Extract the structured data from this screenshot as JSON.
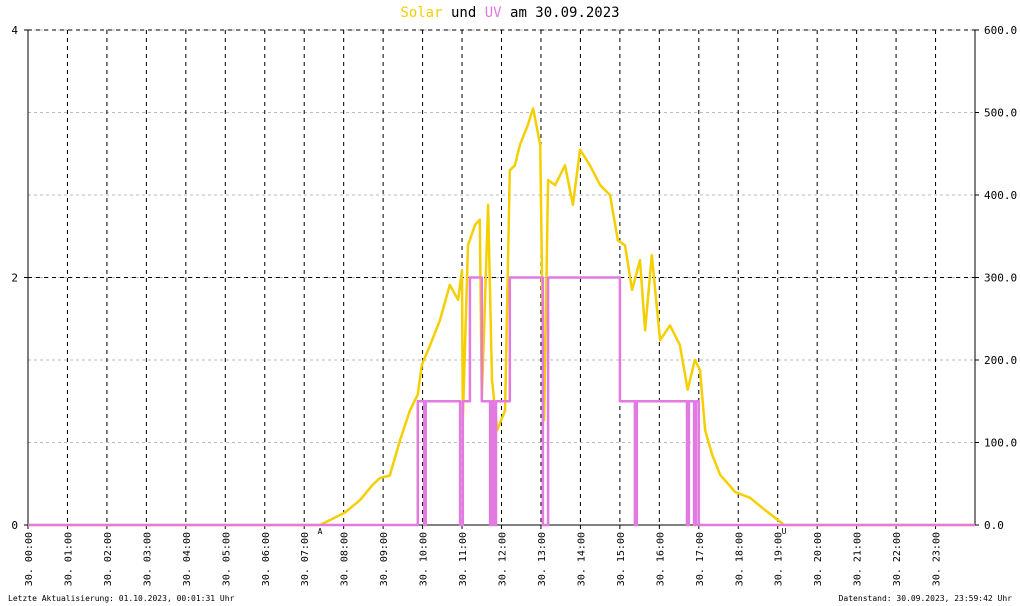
{
  "chart_data": {
    "type": "line",
    "title_connector": "und",
    "title_suffix": "am 30.09.2023",
    "series": [
      {
        "name": "Solar",
        "color": "#f5cf00",
        "axis": "y2",
        "x": [
          0,
          7.4,
          8.03,
          8.41,
          8.72,
          8.92,
          9.17,
          9.43,
          9.68,
          9.88,
          9.98,
          10.19,
          10.44,
          10.69,
          10.9,
          11.0,
          11.02,
          11.15,
          11.33,
          11.45,
          11.5,
          11.66,
          11.76,
          11.89,
          12.09,
          12.21,
          12.34,
          12.47,
          12.67,
          12.8,
          12.98,
          13.08,
          13.18,
          13.36,
          13.61,
          13.81,
          13.99,
          14.24,
          14.5,
          14.75,
          14.95,
          15.13,
          15.31,
          15.51,
          15.64,
          15.81,
          16.02,
          16.27,
          16.52,
          16.72,
          16.9,
          17.03,
          17.16,
          17.34,
          17.54,
          17.92,
          18.3,
          18.68,
          19.06,
          19.16,
          24
        ],
        "values": [
          0,
          0,
          15,
          30,
          48,
          57,
          60,
          103,
          139,
          158,
          194,
          218,
          248,
          291,
          273,
          309,
          127,
          339,
          364,
          370,
          152,
          388,
          176,
          115,
          139,
          430,
          436,
          461,
          485,
          505,
          461,
          127,
          418,
          412,
          436,
          388,
          455,
          436,
          412,
          400,
          345,
          339,
          285,
          321,
          236,
          327,
          224,
          242,
          218,
          164,
          200,
          188,
          115,
          85,
          61,
          40,
          33,
          18,
          4,
          0,
          0
        ]
      },
      {
        "name": "UV",
        "color": "#e27ae2",
        "x": [
          0,
          9.88,
          9.88,
          10.04,
          10.04,
          10.08,
          10.08,
          10.95,
          10.95,
          11.02,
          11.02,
          11.2,
          11.2,
          11.5,
          11.5,
          11.71,
          11.71,
          11.76,
          11.76,
          11.81,
          11.81,
          11.86,
          11.86,
          12.21,
          12.21,
          13.05,
          13.05,
          13.18,
          13.18,
          15.0,
          15.0,
          15.38,
          15.38,
          15.43,
          15.43,
          16.7,
          16.7,
          16.75,
          16.75,
          16.88,
          16.88,
          16.93,
          16.93,
          17.0,
          17.0,
          24
        ],
        "values": [
          0,
          0,
          1,
          1,
          0,
          0,
          1,
          1,
          0,
          0,
          1,
          1,
          2,
          2,
          1,
          1,
          0,
          0,
          1,
          1,
          0,
          0,
          1,
          1,
          2,
          2,
          0,
          0,
          2,
          2,
          1,
          1,
          0,
          0,
          1,
          1,
          0,
          0,
          1,
          1,
          0,
          0,
          1,
          1,
          0,
          0
        ]
      }
    ],
    "xlim": [
      0,
      24
    ],
    "xticks": [
      {
        "value": 0,
        "label": "30. 00:00"
      },
      {
        "value": 1,
        "label": "30. 01:00"
      },
      {
        "value": 2,
        "label": "30. 02:00"
      },
      {
        "value": 3,
        "label": "30. 03:00"
      },
      {
        "value": 4,
        "label": "30. 04:00"
      },
      {
        "value": 5,
        "label": "30. 05:00"
      },
      {
        "value": 6,
        "label": "30. 06:00"
      },
      {
        "value": 7,
        "label": "30. 07:00"
      },
      {
        "value": 8,
        "label": "30. 08:00"
      },
      {
        "value": 9,
        "label": "30. 09:00"
      },
      {
        "value": 10,
        "label": "30. 10:00"
      },
      {
        "value": 11,
        "label": "30. 11:00"
      },
      {
        "value": 12,
        "label": "30. 12:00"
      },
      {
        "value": 13,
        "label": "30. 13:00"
      },
      {
        "value": 14,
        "label": "30. 14:00"
      },
      {
        "value": 15,
        "label": "30. 15:00"
      },
      {
        "value": 16,
        "label": "30. 16:00"
      },
      {
        "value": 17,
        "label": "30. 17:00"
      },
      {
        "value": 18,
        "label": "30. 18:00"
      },
      {
        "value": 19,
        "label": "30. 19:00"
      },
      {
        "value": 20,
        "label": "30. 20:00"
      },
      {
        "value": 21,
        "label": "30. 21:00"
      },
      {
        "value": 22,
        "label": "30. 22:00"
      },
      {
        "value": 23,
        "label": "30. 23:00"
      }
    ],
    "ylim": [
      0,
      4
    ],
    "yticks": [
      0,
      2,
      4
    ],
    "y2lim": [
      0,
      600
    ],
    "y2ticks": [
      {
        "value": 0,
        "label": "0.0"
      },
      {
        "value": 100,
        "label": "100.0"
      },
      {
        "value": 200,
        "label": "200.0"
      },
      {
        "value": 300,
        "label": "300.0"
      },
      {
        "value": 400,
        "label": "400.0"
      },
      {
        "value": 500,
        "label": "500.0"
      },
      {
        "value": 600,
        "label": "600.0"
      }
    ],
    "grid": true,
    "annotations": [
      {
        "text": "A",
        "x": 7.4,
        "color": "#d00000"
      },
      {
        "text": "U",
        "x": 19.16,
        "color": "#d00000"
      }
    ]
  },
  "footer": {
    "left": "Letzte Aktualisierung: 01.10.2023, 00:01:31 Uhr",
    "right": "Datenstand: 30.09.2023, 23:59:42 Uhr"
  }
}
